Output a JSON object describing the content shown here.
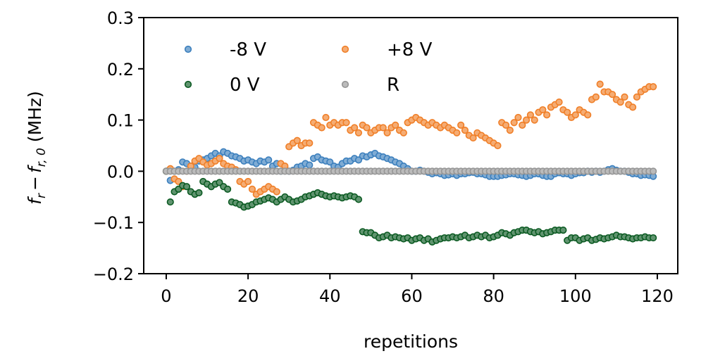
{
  "chart_data": {
    "type": "scatter",
    "title": "",
    "xlabel": "repetitions",
    "ylabel": "f_r − f_{r,0} (MHz)",
    "ylabel_parts": {
      "f": "f",
      "sub_r": "r",
      "minus": "−",
      "sub_r0": "r, 0",
      "unit": "(MHz)"
    },
    "xlim": [
      -5.5,
      125
    ],
    "ylim": [
      -0.2,
      0.3
    ],
    "xticks": [
      0,
      20,
      40,
      60,
      80,
      100,
      120
    ],
    "yticks": [
      -0.2,
      -0.1,
      0.0,
      0.1,
      0.2,
      0.3
    ],
    "xtick_labels": [
      "0",
      "20",
      "40",
      "60",
      "80",
      "100",
      "120"
    ],
    "ytick_labels": [
      "−0.2",
      "−0.1",
      "0.0",
      "0.1",
      "0.2",
      "0.3"
    ],
    "grid": false,
    "legend_position": "top-left",
    "series": [
      {
        "name": "-8 V",
        "color": "#3b7fbd",
        "x_start": 0,
        "values": [
          0.0,
          -0.018,
          0.0,
          0.003,
          0.018,
          0.015,
          0.01,
          0.008,
          0.02,
          0.022,
          0.025,
          0.03,
          0.035,
          0.03,
          0.038,
          0.035,
          0.03,
          0.028,
          0.025,
          0.02,
          0.022,
          0.018,
          0.015,
          0.02,
          0.018,
          0.022,
          0.01,
          0.015,
          0.0,
          0.005,
          0.0,
          0.002,
          0.008,
          0.01,
          0.015,
          0.012,
          0.025,
          0.028,
          0.022,
          0.02,
          0.018,
          0.01,
          0.008,
          0.015,
          0.02,
          0.02,
          0.025,
          0.022,
          0.03,
          0.028,
          0.032,
          0.035,
          0.03,
          0.028,
          0.025,
          0.022,
          0.018,
          0.015,
          0.01,
          0.005,
          0.0,
          0.0,
          0.002,
          0.0,
          -0.002,
          -0.005,
          -0.003,
          -0.005,
          -0.008,
          -0.007,
          -0.005,
          -0.008,
          -0.005,
          -0.005,
          -0.003,
          -0.002,
          -0.005,
          -0.005,
          -0.007,
          -0.01,
          -0.01,
          -0.01,
          -0.008,
          -0.007,
          -0.005,
          -0.005,
          -0.007,
          -0.008,
          -0.01,
          -0.008,
          -0.005,
          -0.005,
          -0.008,
          -0.01,
          -0.01,
          -0.005,
          -0.003,
          -0.005,
          -0.005,
          -0.008,
          -0.005,
          -0.003,
          -0.003,
          0.0,
          -0.002,
          0.0,
          -0.002,
          0.0,
          0.003,
          0.005,
          0.002,
          0.0,
          0.0,
          -0.002,
          -0.005,
          -0.005,
          -0.008,
          -0.007,
          -0.008,
          -0.01
        ]
      },
      {
        "name": "+8 V",
        "color": "#f07f28",
        "x_start": 0,
        "values": [
          0.0,
          0.005,
          -0.015,
          -0.02,
          -0.03,
          0.0,
          0.01,
          0.02,
          0.025,
          0.018,
          0.012,
          0.015,
          0.02,
          0.025,
          0.015,
          0.01,
          0.008,
          0.003,
          -0.02,
          -0.025,
          -0.02,
          -0.035,
          -0.045,
          -0.04,
          -0.035,
          -0.03,
          -0.035,
          -0.04,
          0.015,
          0.01,
          0.048,
          0.055,
          0.06,
          0.05,
          0.055,
          0.055,
          0.095,
          0.09,
          0.085,
          0.105,
          0.09,
          0.095,
          0.09,
          0.095,
          0.095,
          0.08,
          0.085,
          0.075,
          0.09,
          0.085,
          0.075,
          0.08,
          0.085,
          0.085,
          0.075,
          0.085,
          0.09,
          0.08,
          0.075,
          0.095,
          0.1,
          0.105,
          0.1,
          0.095,
          0.09,
          0.095,
          0.09,
          0.085,
          0.09,
          0.085,
          0.08,
          0.075,
          0.09,
          0.08,
          0.07,
          0.065,
          0.075,
          0.07,
          0.065,
          0.06,
          0.055,
          0.05,
          0.095,
          0.09,
          0.08,
          0.095,
          0.105,
          0.09,
          0.1,
          0.11,
          0.1,
          0.115,
          0.12,
          0.11,
          0.125,
          0.13,
          0.135,
          0.12,
          0.115,
          0.105,
          0.11,
          0.12,
          0.115,
          0.11,
          0.14,
          0.145,
          0.17,
          0.155,
          0.155,
          0.15,
          0.14,
          0.135,
          0.145,
          0.13,
          0.125,
          0.145,
          0.155,
          0.16,
          0.165,
          0.165
        ]
      },
      {
        "name": "0 V",
        "color": "#0b5a22",
        "x_start": 0,
        "values": [
          0.0,
          -0.06,
          -0.04,
          -0.035,
          -0.028,
          -0.03,
          -0.04,
          -0.045,
          -0.042,
          -0.02,
          -0.025,
          -0.03,
          -0.025,
          -0.022,
          -0.03,
          -0.035,
          -0.06,
          -0.062,
          -0.065,
          -0.07,
          -0.068,
          -0.065,
          -0.06,
          -0.058,
          -0.055,
          -0.052,
          -0.055,
          -0.06,
          -0.055,
          -0.05,
          -0.055,
          -0.06,
          -0.058,
          -0.055,
          -0.05,
          -0.048,
          -0.045,
          -0.042,
          -0.045,
          -0.048,
          -0.05,
          -0.048,
          -0.05,
          -0.052,
          -0.05,
          -0.048,
          -0.05,
          -0.055,
          -0.118,
          -0.12,
          -0.12,
          -0.125,
          -0.13,
          -0.128,
          -0.125,
          -0.13,
          -0.128,
          -0.13,
          -0.132,
          -0.13,
          -0.135,
          -0.132,
          -0.13,
          -0.135,
          -0.132,
          -0.138,
          -0.135,
          -0.132,
          -0.13,
          -0.13,
          -0.128,
          -0.13,
          -0.128,
          -0.125,
          -0.13,
          -0.128,
          -0.125,
          -0.128,
          -0.125,
          -0.13,
          -0.128,
          -0.125,
          -0.12,
          -0.122,
          -0.125,
          -0.12,
          -0.118,
          -0.115,
          -0.115,
          -0.118,
          -0.12,
          -0.118,
          -0.122,
          -0.12,
          -0.118,
          -0.115,
          -0.115,
          -0.115,
          -0.135,
          -0.13,
          -0.13,
          -0.135,
          -0.132,
          -0.13,
          -0.135,
          -0.133,
          -0.13,
          -0.132,
          -0.13,
          -0.128,
          -0.125,
          -0.128,
          -0.128,
          -0.13,
          -0.132,
          -0.13,
          -0.13,
          -0.128,
          -0.13,
          -0.13
        ]
      },
      {
        "name": "R",
        "color": "#969696",
        "x_start": 0,
        "values": [
          0.0,
          0.0,
          0.0,
          0.0,
          0.0,
          0.0,
          0.0,
          0.0,
          0.0,
          0.0,
          0.0,
          0.0,
          0.0,
          0.0,
          0.0,
          0.0,
          0.0,
          0.0,
          0.0,
          0.0,
          0.0,
          0.0,
          0.0,
          0.0,
          0.0,
          0.0,
          0.0,
          0.0,
          0.0,
          0.0,
          0.0,
          0.0,
          0.0,
          0.0,
          0.0,
          0.0,
          0.0,
          0.0,
          0.0,
          0.0,
          0.0,
          0.0,
          0.0,
          0.0,
          0.0,
          0.0,
          0.0,
          0.0,
          0.0,
          0.0,
          0.0,
          0.0,
          0.0,
          0.0,
          0.0,
          0.0,
          0.0,
          0.0,
          0.0,
          0.0,
          0.0,
          0.0,
          0.0,
          0.0,
          0.0,
          0.0,
          0.0,
          0.0,
          0.0,
          0.0,
          0.0,
          0.0,
          0.0,
          0.0,
          0.0,
          0.0,
          0.0,
          0.0,
          0.0,
          0.0,
          0.0,
          0.0,
          0.0,
          0.0,
          0.0,
          0.0,
          0.0,
          0.0,
          0.0,
          0.0,
          0.0,
          0.0,
          0.0,
          0.0,
          0.0,
          0.0,
          0.0,
          0.0,
          0.0,
          0.0,
          0.0,
          0.0,
          0.0,
          0.0,
          0.0,
          0.0,
          0.0,
          0.0,
          0.0,
          0.0,
          0.0,
          0.0,
          0.0,
          0.0,
          0.0,
          0.0,
          0.0,
          0.0,
          0.0,
          0.0
        ]
      }
    ],
    "legend": [
      {
        "label": "-8 V",
        "color": "#3b7fbd"
      },
      {
        "label": "+8 V",
        "color": "#f07f28"
      },
      {
        "label": "0 V",
        "color": "#0b5a22"
      },
      {
        "label": "R",
        "color": "#969696"
      }
    ]
  }
}
